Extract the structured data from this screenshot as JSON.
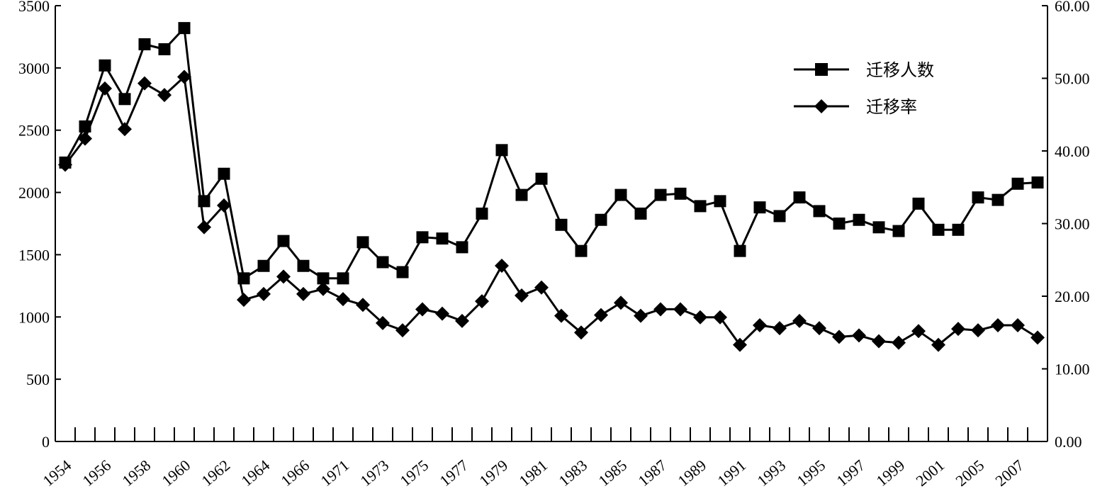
{
  "chart_data": {
    "type": "line",
    "x": [
      "1954",
      "1955",
      "1956",
      "1957",
      "1958",
      "1959",
      "1960",
      "1961",
      "1962",
      "1963",
      "1964",
      "1965",
      "1966",
      "1967",
      "1971",
      "1972",
      "1973",
      "1974",
      "1975",
      "1976",
      "1977",
      "1978",
      "1979",
      "1980",
      "1981",
      "1982",
      "1983",
      "1984",
      "1985",
      "1986",
      "1987",
      "1988",
      "1989",
      "1990",
      "1991",
      "1992",
      "1993",
      "1994",
      "1995",
      "1996",
      "1997",
      "1998",
      "1999",
      "2000",
      "2001",
      "2002",
      "2005",
      "2006",
      "2007",
      "2008"
    ],
    "x_tick_labels": [
      "1954",
      "1956",
      "1958",
      "1960",
      "1962",
      "1964",
      "1966",
      "1971",
      "1973",
      "1975",
      "1977",
      "1979",
      "1981",
      "1983",
      "1985",
      "1987",
      "1989",
      "1991",
      "1993",
      "1995",
      "1997",
      "1999",
      "2001",
      "2005",
      "2007"
    ],
    "y_left": {
      "min": 0,
      "max": 3500,
      "ticks": [
        "0",
        "500",
        "1000",
        "1500",
        "2000",
        "2500",
        "3000",
        "3500"
      ]
    },
    "y_right": {
      "min": 0,
      "max": 60,
      "ticks": [
        "0.00",
        "10.00",
        "20.00",
        "30.00",
        "40.00",
        "50.00",
        "60.00"
      ]
    },
    "series": [
      {
        "name": "迁移人数",
        "axis": "left",
        "marker": "square",
        "values": [
          2240,
          2530,
          3020,
          2750,
          3190,
          3150,
          3320,
          1930,
          2150,
          1310,
          1410,
          1610,
          1410,
          1310,
          1310,
          1600,
          1440,
          1360,
          1640,
          1630,
          1560,
          1830,
          2340,
          1980,
          2110,
          1740,
          1530,
          1780,
          1980,
          1830,
          1980,
          1990,
          1890,
          1930,
          1530,
          1880,
          1810,
          1960,
          1850,
          1750,
          1780,
          1720,
          1690,
          1910,
          1700,
          1700,
          1960,
          1940,
          2070,
          2080
        ]
      },
      {
        "name": "迁移率",
        "axis": "right",
        "marker": "diamond",
        "values": [
          38.1,
          41.7,
          48.6,
          43.0,
          49.3,
          47.7,
          50.2,
          29.5,
          32.5,
          19.5,
          20.3,
          22.7,
          20.3,
          21.0,
          19.6,
          18.8,
          16.3,
          15.3,
          18.2,
          17.6,
          16.6,
          19.3,
          24.2,
          20.1,
          21.2,
          17.3,
          15.0,
          17.4,
          19.1,
          17.3,
          18.2,
          18.2,
          17.1,
          17.1,
          13.3,
          16.0,
          15.6,
          16.6,
          15.6,
          14.4,
          14.6,
          13.8,
          13.6,
          15.2,
          13.3,
          15.5,
          15.3,
          16.0,
          16.0,
          14.3
        ]
      }
    ],
    "legend": {
      "placement": "top-right"
    },
    "grid": false
  }
}
